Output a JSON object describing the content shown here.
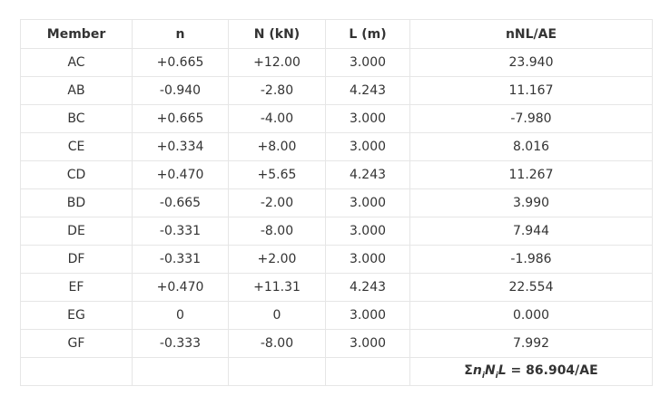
{
  "table": {
    "headers": [
      "Member",
      "n",
      "N (kN)",
      "L (m)",
      "nNL/AE"
    ],
    "rows": [
      [
        "AC",
        "+0.665",
        "+12.00",
        "3.000",
        "23.940"
      ],
      [
        "AB",
        "-0.940",
        "-2.80",
        "4.243",
        "11.167"
      ],
      [
        "BC",
        "+0.665",
        "-4.00",
        "3.000",
        "-7.980"
      ],
      [
        "CE",
        "+0.334",
        "+8.00",
        "3.000",
        "8.016"
      ],
      [
        "CD",
        "+0.470",
        "+5.65",
        "4.243",
        "11.267"
      ],
      [
        "BD",
        "-0.665",
        "-2.00",
        "3.000",
        "3.990"
      ],
      [
        "DE",
        "-0.331",
        "-8.00",
        "3.000",
        "7.944"
      ],
      [
        "DF",
        "-0.331",
        "+2.00",
        "3.000",
        "-1.986"
      ],
      [
        "EF",
        "+0.470",
        "+11.31",
        "4.243",
        "22.554"
      ],
      [
        "EG",
        "0",
        "0",
        "3.000",
        "0.000"
      ],
      [
        "GF",
        "-0.333",
        "-8.00",
        "3.000",
        "7.992"
      ]
    ],
    "summary": {
      "sigma": "Σ",
      "n": "n",
      "n_sub": "i",
      "N": "N",
      "N_sub": "i",
      "L": "L",
      "rest": " = 86.904/AE"
    }
  }
}
